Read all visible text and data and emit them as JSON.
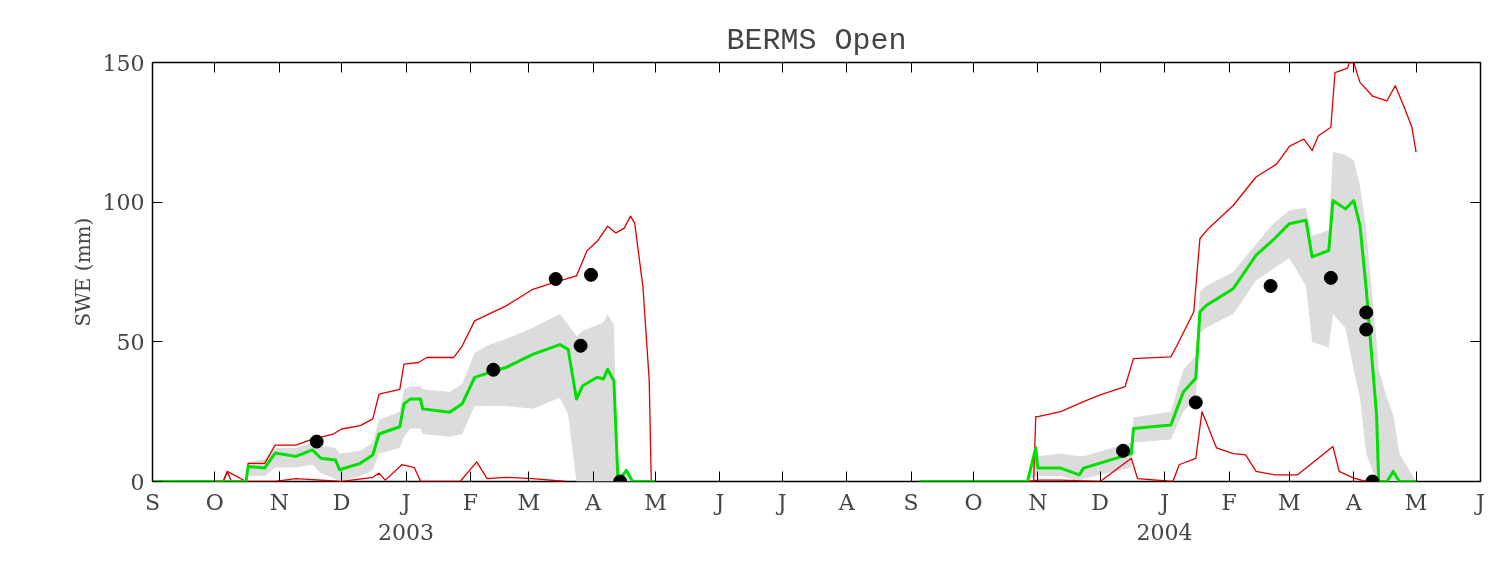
{
  "chart_data": {
    "type": "line",
    "title": "BERMS Open",
    "ylabel": "SWE (mm)",
    "xlim": [
      "2002-09-01",
      "2004-06-01"
    ],
    "xticks": [
      {
        "value": "2002-09-01",
        "label": "S"
      },
      {
        "value": "2002-10-01",
        "label": "O"
      },
      {
        "value": "2002-11-01",
        "label": "N"
      },
      {
        "value": "2002-12-01",
        "label": "D"
      },
      {
        "value": "2003-01-01",
        "label": "J\n2003"
      },
      {
        "value": "2003-02-01",
        "label": "F"
      },
      {
        "value": "2003-03-01",
        "label": "M"
      },
      {
        "value": "2003-04-01",
        "label": "A"
      },
      {
        "value": "2003-05-01",
        "label": "M"
      },
      {
        "value": "2003-06-01",
        "label": "J"
      },
      {
        "value": "2003-07-01",
        "label": "J"
      },
      {
        "value": "2003-08-01",
        "label": "A"
      },
      {
        "value": "2003-09-01",
        "label": "S"
      },
      {
        "value": "2003-10-01",
        "label": "O"
      },
      {
        "value": "2003-11-01",
        "label": "N"
      },
      {
        "value": "2003-12-01",
        "label": "D"
      },
      {
        "value": "2004-01-01",
        "label": "J\n2004"
      },
      {
        "value": "2004-02-01",
        "label": "F"
      },
      {
        "value": "2004-03-01",
        "label": "M"
      },
      {
        "value": "2004-04-01",
        "label": "A"
      },
      {
        "value": "2004-05-01",
        "label": "M"
      },
      {
        "value": "2004-06-01",
        "label": "J"
      }
    ],
    "ylim": [
      0,
      150
    ],
    "yticks": [
      0,
      50,
      100,
      150
    ],
    "series": [
      {
        "color": "#dc0000",
        "x": [
          "2002-10-01",
          "2002-10-05",
          "2002-10-07",
          "2002-10-16",
          "2002-10-17",
          "2002-10-25",
          "2002-10-30",
          "2002-11-09",
          "2002-11-17",
          "2002-11-27",
          "2002-12-01",
          "2002-12-10",
          "2002-12-16",
          "2002-12-19",
          "2002-12-29",
          "2002-12-31",
          "2003-01-07",
          "2003-01-11",
          "2003-01-24",
          "2003-01-28",
          "2003-02-03",
          "2003-02-10",
          "2003-02-18",
          "2003-03-03",
          "2003-03-13",
          "2003-03-24",
          "2003-03-29",
          "2003-04-03",
          "2003-04-08",
          "2003-04-12",
          "2003-04-16",
          "2003-04-19",
          "2003-04-21",
          "2003-04-25",
          "2003-04-28",
          "2003-04-29",
          "2003-07-01",
          "2003-10-27",
          "2003-10-30",
          "2003-10-31",
          "2003-11-01",
          "2003-11-12",
          "2003-11-23",
          "2003-12-01",
          "2003-12-13",
          "2003-12-17",
          "2004-01-04",
          "2004-01-07",
          "2004-01-15",
          "2004-01-18",
          "2004-01-22",
          "2004-02-03",
          "2004-02-14",
          "2004-02-24",
          "2004-03-01",
          "2004-03-08",
          "2004-03-12",
          "2004-03-15",
          "2004-03-21",
          "2004-03-23",
          "2004-03-29",
          "2004-03-30",
          "2004-04-01",
          "2004-04-04",
          "2004-04-10",
          "2004-04-17",
          "2004-04-21",
          "2004-04-25",
          "2004-04-29",
          "2004-05-01"
        ],
        "values": [
          0,
          0,
          3.6,
          0,
          6.5,
          6.5,
          13,
          13,
          15.2,
          17,
          18.8,
          20,
          22.4,
          31.3,
          33,
          42,
          42.6,
          44.4,
          44.4,
          48.5,
          57.5,
          60,
          62.8,
          68.8,
          71.2,
          73.6,
          82.5,
          86,
          91.4,
          89,
          90.7,
          95,
          92.6,
          69.6,
          36.3,
          0,
          null,
          0,
          0,
          23.2,
          23.2,
          25,
          28.6,
          31,
          34,
          44,
          44.6,
          48.8,
          60.7,
          87,
          90.5,
          98.8,
          109,
          113.7,
          120,
          122.6,
          118.5,
          123.8,
          126.8,
          146.4,
          148,
          150,
          150,
          142.9,
          138,
          136.3,
          141.7,
          134.5,
          126.8,
          117.9
        ]
      },
      {
        "color": "#dc0000",
        "x": [
          "2002-10-01",
          "2002-10-05",
          "2002-10-07",
          "2002-10-09",
          "2002-10-30",
          "2002-11-09",
          "2002-12-01",
          "2002-12-16",
          "2002-12-19",
          "2002-12-22",
          "2002-12-30",
          "2003-01-05",
          "2003-01-08",
          "2003-01-27",
          "2003-02-04",
          "2003-02-09",
          "2003-02-18",
          "2003-03-03",
          "2003-03-19",
          "2003-07-01",
          "2003-10-27",
          "2003-11-01",
          "2003-11-12",
          "2003-12-01",
          "2003-12-16",
          "2003-12-19",
          "2004-01-05",
          "2004-01-08",
          "2004-01-16",
          "2004-01-19",
          "2004-01-26",
          "2004-02-03",
          "2004-02-09",
          "2004-02-14",
          "2004-02-23",
          "2004-03-05",
          "2004-03-22",
          "2004-03-25",
          "2004-04-01",
          "2004-04-07"
        ],
        "values": [
          0,
          0,
          3.6,
          0,
          0,
          1,
          0,
          1.5,
          3,
          0.5,
          6,
          5,
          0,
          0,
          7,
          1,
          1.5,
          1,
          0,
          null,
          0,
          0.5,
          0.5,
          0,
          8.3,
          1,
          0,
          6,
          8.3,
          25,
          12,
          10,
          9.5,
          3.6,
          2.4,
          2.4,
          12.5,
          3.6,
          1.2,
          0
        ]
      },
      {
        "color": "#00e000",
        "x": [
          "2002-09-01",
          "2002-10-16",
          "2002-10-17",
          "2002-10-25",
          "2002-10-30",
          "2002-11-09",
          "2002-11-17",
          "2002-11-21",
          "2002-11-28",
          "2002-11-30",
          "2002-12-10",
          "2002-12-16",
          "2002-12-19",
          "2002-12-29",
          "2002-12-31",
          "2003-01-03",
          "2003-01-08",
          "2003-01-09",
          "2003-01-22",
          "2003-01-28",
          "2003-02-03",
          "2003-02-10",
          "2003-02-18",
          "2003-03-03",
          "2003-03-16",
          "2003-03-20",
          "2003-03-24",
          "2003-03-27",
          "2003-04-03",
          "2003-04-06",
          "2003-04-08",
          "2003-04-11",
          "2003-04-13",
          "2003-04-17",
          "2003-04-20",
          "2003-05-01",
          "2003-07-01",
          "2003-09-05",
          "2003-10-27",
          "2003-10-31",
          "2003-11-01",
          "2003-11-12",
          "2003-11-21",
          "2003-11-23",
          "2003-12-16",
          "2003-12-17",
          "2004-01-04",
          "2004-01-10",
          "2004-01-16",
          "2004-01-18",
          "2004-01-21",
          "2004-02-03",
          "2004-02-14",
          "2004-02-22",
          "2004-03-01",
          "2004-03-09",
          "2004-03-12",
          "2004-03-20",
          "2004-03-22",
          "2004-03-28",
          "2004-04-01",
          "2004-04-04",
          "2004-04-07",
          "2004-04-12",
          "2004-04-13",
          "2004-04-17",
          "2004-04-20",
          "2004-04-23",
          "2004-05-01"
        ],
        "values": [
          0,
          0,
          5.4,
          4.8,
          10.2,
          9,
          11.3,
          8.3,
          7.7,
          4.2,
          6.5,
          9.5,
          17,
          19.6,
          27.8,
          29.5,
          29.5,
          26,
          24.8,
          27.8,
          37.3,
          39,
          40.8,
          45.5,
          49,
          47.3,
          29.5,
          34.3,
          37.3,
          36.7,
          40.2,
          36,
          0,
          4,
          0,
          0,
          null,
          0,
          0,
          12,
          4.8,
          4.8,
          2.4,
          4.8,
          10,
          19,
          20.2,
          32,
          37,
          60.7,
          63,
          69,
          81,
          86.3,
          92.3,
          93.5,
          80.4,
          82.7,
          100.6,
          97.6,
          100.6,
          91.7,
          69,
          23.8,
          0,
          0,
          3.6,
          0,
          0
        ],
        "lower": [
          0,
          0,
          2,
          2,
          5,
          5,
          6,
          3,
          1,
          0,
          2,
          4,
          10,
          12,
          16,
          19,
          19,
          17,
          16,
          17,
          27,
          27,
          27,
          26,
          30,
          24,
          0,
          0,
          0,
          0,
          0,
          0,
          0,
          0,
          0,
          0,
          null,
          0,
          0,
          2,
          2,
          2,
          0,
          1,
          5,
          14,
          15,
          25,
          30,
          53,
          55,
          60,
          72,
          76,
          80,
          70,
          50,
          48,
          60,
          55,
          40,
          30,
          10,
          0,
          0,
          0,
          0,
          0,
          0
        ],
        "upper": [
          0,
          0,
          7,
          8,
          12,
          12,
          14,
          13,
          12,
          10,
          11,
          14,
          22,
          25,
          33,
          34,
          34,
          33,
          32,
          35,
          46,
          49,
          51,
          55,
          60,
          56,
          52,
          54,
          56,
          57,
          60,
          56,
          0,
          5,
          0,
          0,
          null,
          0,
          0,
          14,
          9,
          10,
          9,
          9,
          14,
          23,
          25,
          40,
          45,
          68,
          70,
          75,
          85,
          92,
          97,
          98,
          88,
          90,
          118,
          117,
          115,
          106,
          90,
          50,
          40,
          30,
          24,
          10,
          0
        ]
      },
      {
        "type": "scatter",
        "color": "#000000",
        "marker": "circle",
        "x": [
          "2002-11-19",
          "2003-02-12",
          "2003-03-14",
          "2003-03-26",
          "2003-03-31",
          "2003-04-14",
          "2003-12-12",
          "2004-01-16",
          "2004-02-21",
          "2004-03-21",
          "2004-04-07",
          "2004-04-07",
          "2004-04-10"
        ],
        "values": [
          14.3,
          40,
          72.5,
          48.6,
          74,
          0,
          11,
          28.3,
          70,
          72.9,
          60.5,
          54.4,
          0
        ]
      }
    ]
  }
}
